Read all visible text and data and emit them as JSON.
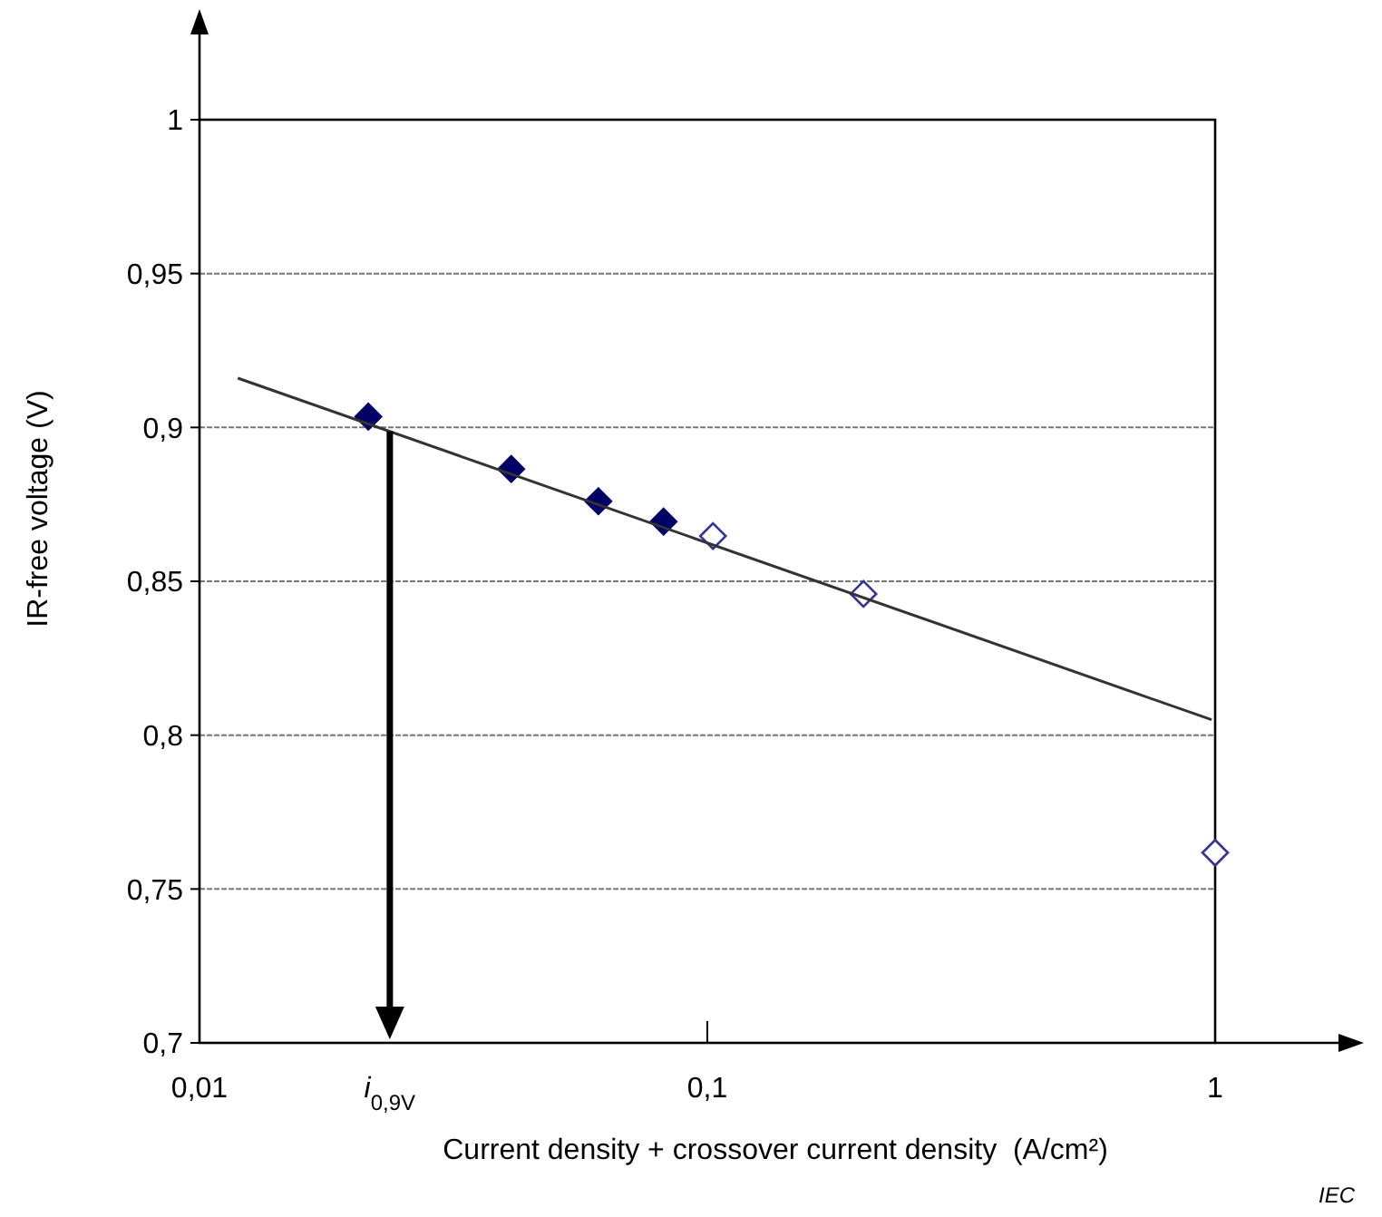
{
  "chart_data": {
    "type": "scatter",
    "xlabel": "Current density + crossover current density  (A/cm²)",
    "ylabel": "IR-free voltage (V)",
    "log": "x",
    "xlim": [
      0.01,
      1
    ],
    "ylim": [
      0.7,
      1
    ],
    "xticks": [
      {
        "value": 0.01,
        "label": "0,01"
      },
      {
        "value": 0.1,
        "label": "0,1"
      },
      1
    ],
    "yticks": [
      {
        "value": 0.7,
        "label": "0,7"
      },
      {
        "value": 0.75,
        "label": "0,75"
      },
      {
        "value": 0.8,
        "label": "0,8"
      },
      {
        "value": 0.85,
        "label": "0,85"
      },
      {
        "value": 0.9,
        "label": "0,9"
      },
      {
        "value": 0.95,
        "label": "0,95"
      },
      1
    ],
    "grid": "y",
    "marker": "diamond",
    "series": [
      {
        "color": "#000066",
        "x": [
          0.0215,
          0.0411,
          0.061,
          0.082
        ],
        "values": [
          0.9035,
          0.8865,
          0.876,
          0.8694
        ]
      },
      {
        "color": "#333399",
        "x": [
          0.1026,
          0.203,
          1
        ],
        "values": [
          0.8647,
          0.8459,
          0.7618
        ]
      },
      {
        "type": "line",
        "marker": "none",
        "color": "#333333",
        "x": [
          0.0119,
          0.984
        ],
        "values": [
          0.916,
          0.805
        ]
      }
    ],
    "ref_lines": [
      {
        "axis": "x",
        "value": 0.0237,
        "label": "i$_{0,9V}$",
        "color": "#000000"
      }
    ],
    "annotations": [
      "IEC"
    ]
  }
}
